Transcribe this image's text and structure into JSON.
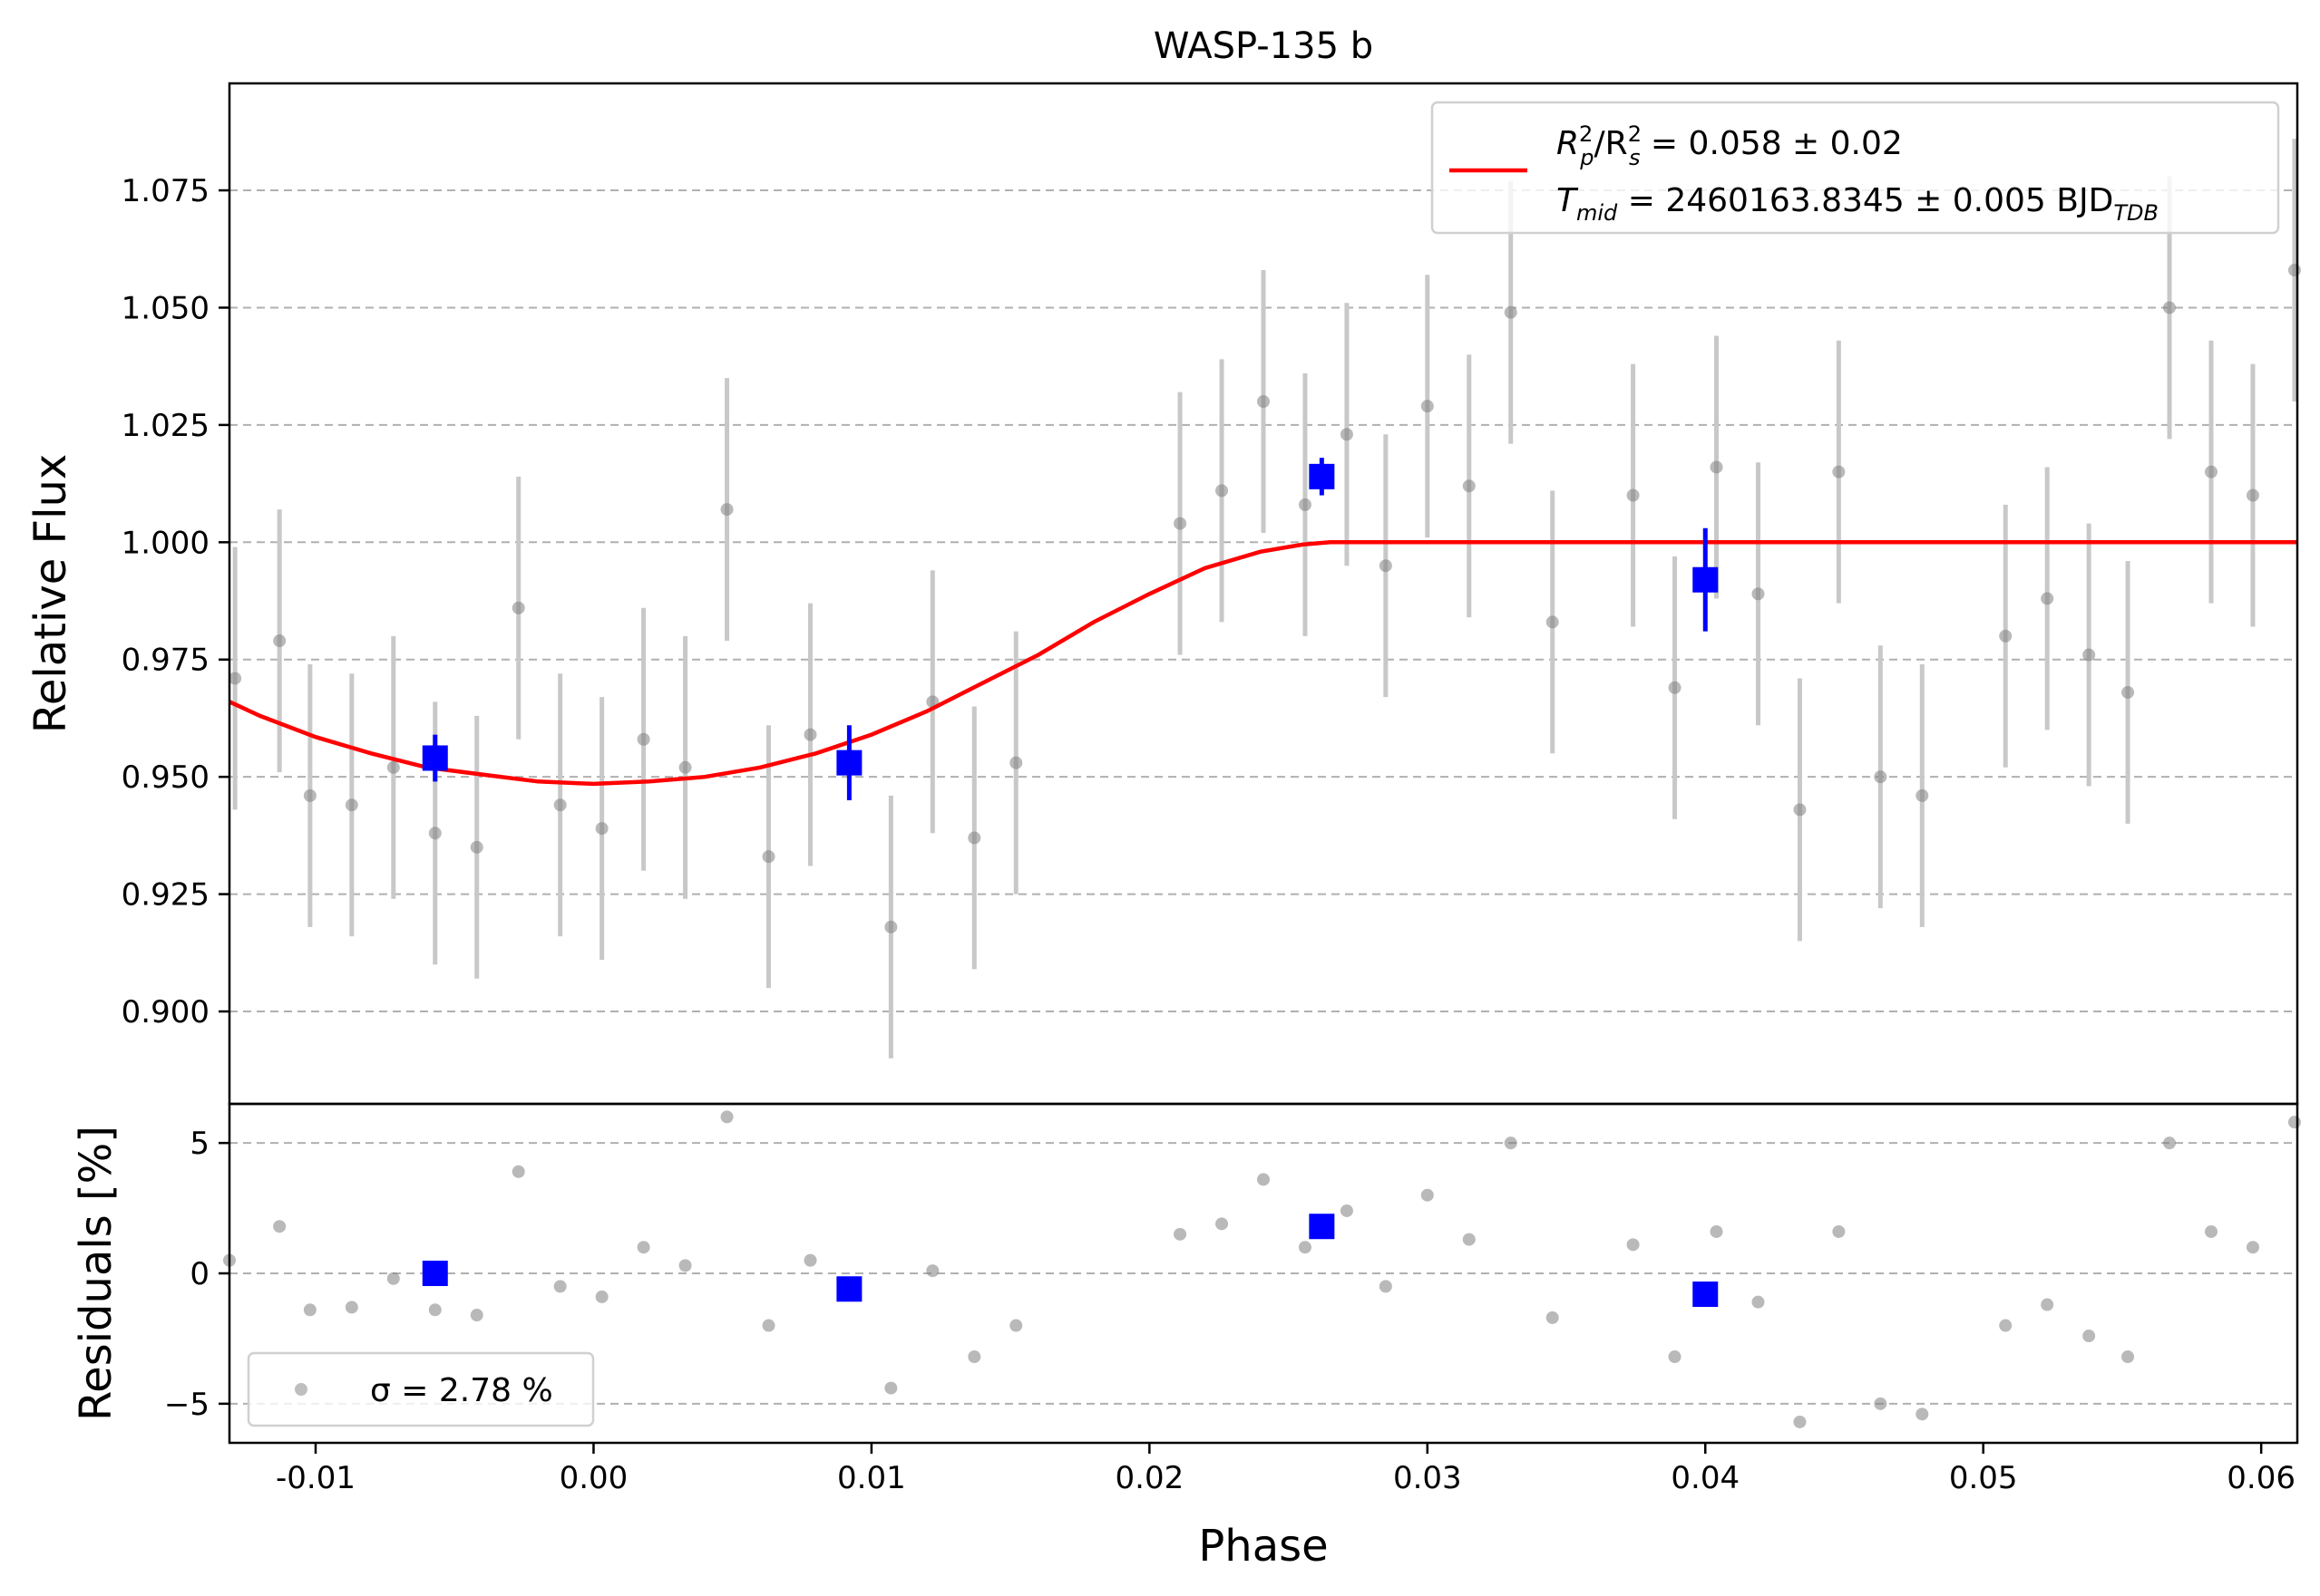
{
  "chart_data": {
    "type": "scatter",
    "title": "WASP-135 b",
    "xlabel": "Phase",
    "xlim": [
      -0.0131,
      0.0613
    ],
    "xticks": [
      "-0.01",
      "0.00",
      "0.01",
      "0.02",
      "0.03",
      "0.04",
      "0.05",
      "0.06"
    ],
    "xtick_values": [
      -0.01,
      0.0,
      0.01,
      0.02,
      0.03,
      0.04,
      0.05,
      0.06
    ],
    "grid": true,
    "top_panel": {
      "ylabel": "Relative Flux",
      "ylim": [
        0.8803,
        1.0978
      ],
      "yticks": [
        "0.900",
        "0.925",
        "0.950",
        "0.975",
        "1.000",
        "1.025",
        "1.050",
        "1.075"
      ],
      "ytick_values": [
        0.9,
        0.925,
        0.95,
        0.975,
        1.0,
        1.025,
        1.05,
        1.075
      ],
      "legend": {
        "placement": "top-right",
        "line1": {
          "base": "R",
          "sub1": "p",
          "sup1": "2",
          "sep": "/R",
          "sub2": "s",
          "sup2": "2",
          "value": " = 0.058 ± 0.02"
        },
        "line2": {
          "base": "T",
          "sub": "mid",
          "value": " = 2460163.8345 ± 0.005 BJD",
          "unit_sub": "TDB"
        }
      },
      "raw_points": {
        "x": [
          -0.0129,
          -0.0113,
          -0.0102,
          -0.0087,
          -0.0072,
          -0.0057,
          -0.0042,
          -0.0027,
          -0.0012,
          0.0003,
          0.0018,
          0.0033,
          0.0048,
          0.0063,
          0.0078,
          0.0107,
          0.0122,
          0.0137,
          0.0152,
          0.0211,
          0.0226,
          0.0241,
          0.0256,
          0.0271,
          0.0285,
          0.03,
          0.0315,
          0.033,
          0.0345,
          0.0374,
          0.0389,
          0.0404,
          0.0419,
          0.0434,
          0.0448,
          0.0463,
          0.0478,
          0.0508,
          0.0523,
          0.0538,
          0.0552,
          0.0567,
          0.0582,
          0.0597,
          0.0612
        ],
        "y": [
          0.971,
          0.979,
          0.946,
          0.944,
          0.952,
          0.938,
          0.935,
          0.986,
          0.944,
          0.939,
          0.958,
          0.952,
          1.007,
          0.933,
          0.959,
          0.918,
          0.966,
          0.937,
          0.953,
          1.004,
          1.011,
          1.03,
          1.008,
          1.023,
          0.995,
          1.029,
          1.012,
          1.049,
          0.983,
          1.01,
          0.969,
          1.016,
          0.989,
          0.943,
          1.015,
          0.95,
          0.946,
          0.98,
          0.988,
          0.976,
          0.968,
          1.05,
          1.015,
          1.01,
          1.058
        ],
        "yerr": 0.028
      },
      "binned_points": {
        "x": [
          -0.0057,
          0.0092,
          0.0262,
          0.04
        ],
        "y": [
          0.954,
          0.953,
          1.014,
          0.992
        ],
        "yerr": [
          0.005,
          0.008,
          0.004,
          0.011
        ]
      },
      "model": {
        "x": [
          -0.0131,
          -0.012,
          -0.01,
          -0.008,
          -0.006,
          -0.004,
          -0.002,
          0.0,
          0.002,
          0.004,
          0.006,
          0.008,
          0.01,
          0.012,
          0.014,
          0.016,
          0.018,
          0.02,
          0.022,
          0.024,
          0.0255,
          0.0265,
          0.0272,
          0.0613
        ],
        "y": [
          0.966,
          0.963,
          0.9585,
          0.955,
          0.952,
          0.9505,
          0.949,
          0.9485,
          0.949,
          0.95,
          0.952,
          0.955,
          0.959,
          0.964,
          0.97,
          0.976,
          0.983,
          0.989,
          0.9945,
          0.998,
          0.9995,
          1.0,
          1.0,
          1.0
        ]
      }
    },
    "bottom_panel": {
      "ylabel": "Residuals [%]",
      "ylim": [
        -6.5,
        6.5
      ],
      "yticks": [
        "−5",
        "0",
        "5"
      ],
      "ytick_values": [
        -5,
        0,
        5
      ],
      "legend": {
        "placement": "lower-left",
        "label": "σ = 2.78 %"
      },
      "raw_points": {
        "x": [
          -0.0131,
          -0.0113,
          -0.0102,
          -0.0087,
          -0.0072,
          -0.0057,
          -0.0042,
          -0.0027,
          -0.0012,
          0.0003,
          0.0018,
          0.0033,
          0.0048,
          0.0063,
          0.0078,
          0.0107,
          0.0122,
          0.0137,
          0.0152,
          0.0211,
          0.0226,
          0.0241,
          0.0256,
          0.0271,
          0.0285,
          0.03,
          0.0315,
          0.033,
          0.0345,
          0.0374,
          0.0389,
          0.0404,
          0.0419,
          0.0434,
          0.0448,
          0.0463,
          0.0478,
          0.0508,
          0.0523,
          0.0538,
          0.0552,
          0.0567,
          0.0582,
          0.0597,
          0.0612
        ],
        "y": [
          0.5,
          1.8,
          -1.4,
          -1.3,
          -0.2,
          -1.4,
          -1.6,
          3.9,
          -0.5,
          -0.9,
          1.0,
          0.3,
          6.0,
          -2.0,
          0.5,
          -4.4,
          0.1,
          -3.2,
          -2.0,
          1.5,
          1.9,
          3.6,
          1.0,
          2.4,
          -0.5,
          3.0,
          1.3,
          5.0,
          -1.7,
          1.1,
          -3.2,
          1.6,
          -1.1,
          -5.7,
          1.6,
          -5.0,
          -5.4,
          -2.0,
          -1.2,
          -2.4,
          -3.2,
          5.0,
          1.6,
          1.0,
          5.8
        ]
      },
      "binned_points": {
        "x": [
          -0.0057,
          0.0092,
          0.0262,
          0.04
        ],
        "y": [
          0.0,
          -0.6,
          1.8,
          -0.8
        ]
      }
    },
    "colors": {
      "raw": "#808080",
      "raw_err": "#c8c8c8",
      "binned": "#0000ff",
      "model": "#ff0000",
      "grid": "#b0b0b0"
    }
  }
}
